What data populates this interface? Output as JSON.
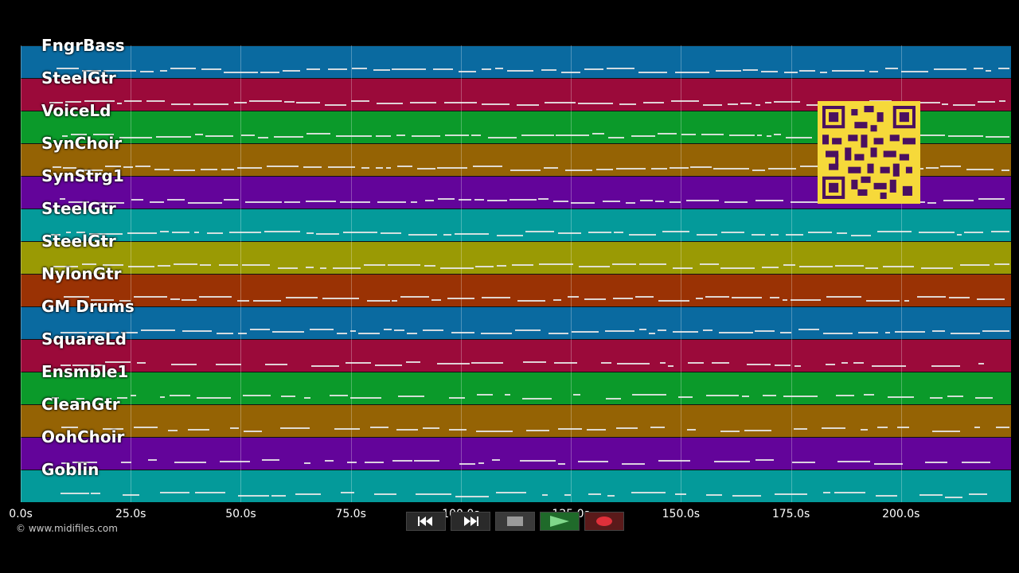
{
  "tracks": [
    {
      "name": "FngrBass",
      "color": "#0a6aa0"
    },
    {
      "name": "SteelGtr",
      "color": "#9b0a3a"
    },
    {
      "name": "VoiceLd",
      "color": "#0b9a2a"
    },
    {
      "name": "SynChoir",
      "color": "#956304"
    },
    {
      "name": "SynStrg1",
      "color": "#63049a"
    },
    {
      "name": "SteelGtr",
      "color": "#049a9a"
    },
    {
      "name": "SteelGtr",
      "color": "#9a9a04"
    },
    {
      "name": "NylonGtr",
      "color": "#9a3204"
    },
    {
      "name": "GM Drums",
      "color": "#0a6aa0"
    },
    {
      "name": "SquareLd",
      "color": "#9b0a3a"
    },
    {
      "name": "Ensmble1",
      "color": "#0b9a2a"
    },
    {
      "name": "CleanGtr",
      "color": "#956304"
    },
    {
      "name": "OohChoir",
      "color": "#63049a"
    },
    {
      "name": "Goblin",
      "color": "#049a9a"
    }
  ],
  "axis": {
    "ticks": [
      "0.0s",
      "25.0s",
      "50.0s",
      "75.0s",
      "100.0s",
      "125.0s",
      "150.0s",
      "175.0s",
      "200.0s"
    ],
    "tick_values": [
      0,
      25,
      50,
      75,
      100,
      125,
      150,
      175,
      200
    ],
    "max_time": 225
  },
  "copyright": "© www.midifiles.com",
  "controls": {
    "rewind": "rewind-icon",
    "fast_forward": "fast-forward-icon",
    "stop": "stop-icon",
    "play": "play-icon",
    "record": "record-icon"
  }
}
